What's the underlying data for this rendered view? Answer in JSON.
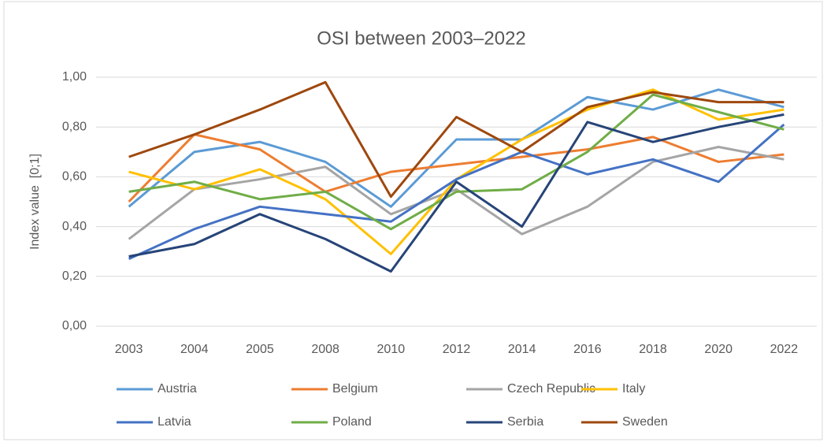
{
  "chart_data": {
    "type": "line",
    "title": "OSI between 2003–2022",
    "y_label": "Index value  [0;1]",
    "categories": [
      "2003",
      "2004",
      "2005",
      "2008",
      "2010",
      "2012",
      "2014",
      "2016",
      "2018",
      "2020",
      "2022"
    ],
    "series": [
      {
        "name": "Austria",
        "color": "#5b9bd5",
        "values": [
          0.48,
          0.7,
          0.74,
          0.66,
          0.48,
          0.75,
          0.75,
          0.92,
          0.87,
          0.95,
          0.88
        ]
      },
      {
        "name": "Belgium",
        "color": "#ed7d31",
        "values": [
          0.5,
          0.77,
          0.71,
          0.54,
          0.62,
          0.65,
          0.68,
          0.71,
          0.76,
          0.66,
          0.69
        ]
      },
      {
        "name": "Czech Republic",
        "color": "#a5a5a5",
        "values": [
          0.35,
          0.55,
          0.59,
          0.64,
          0.45,
          0.55,
          0.37,
          0.48,
          0.66,
          0.72,
          0.67
        ]
      },
      {
        "name": "Italy",
        "color": "#ffc000",
        "values": [
          0.62,
          0.55,
          0.63,
          0.51,
          0.29,
          0.59,
          0.75,
          0.87,
          0.95,
          0.83,
          0.87
        ]
      },
      {
        "name": "Latvia",
        "color": "#4472c4",
        "values": [
          0.27,
          0.39,
          0.48,
          0.45,
          0.42,
          0.59,
          0.7,
          0.61,
          0.67,
          0.58,
          0.81
        ]
      },
      {
        "name": "Poland",
        "color": "#70ad47",
        "values": [
          0.54,
          0.58,
          0.51,
          0.54,
          0.39,
          0.54,
          0.55,
          0.7,
          0.93,
          0.86,
          0.79
        ]
      },
      {
        "name": "Serbia",
        "color": "#264478",
        "values": [
          0.28,
          0.33,
          0.45,
          0.35,
          0.22,
          0.58,
          0.4,
          0.82,
          0.74,
          0.8,
          0.85
        ]
      },
      {
        "name": "Sweden",
        "color": "#9e480e",
        "values": [
          0.68,
          0.77,
          0.87,
          0.98,
          0.52,
          0.84,
          0.7,
          0.88,
          0.94,
          0.9,
          0.9
        ]
      }
    ],
    "ylim": [
      0,
      1
    ],
    "yticks": [
      {
        "value": 0,
        "label": "0,00"
      },
      {
        "value": 0.2,
        "label": "0,20"
      },
      {
        "value": 0.4,
        "label": "0,40"
      },
      {
        "value": 0.6,
        "label": "0,60"
      },
      {
        "value": 0.8,
        "label": "0,80"
      },
      {
        "value": 1,
        "label": "1,00"
      }
    ],
    "grid": true,
    "legend": "bottom"
  }
}
